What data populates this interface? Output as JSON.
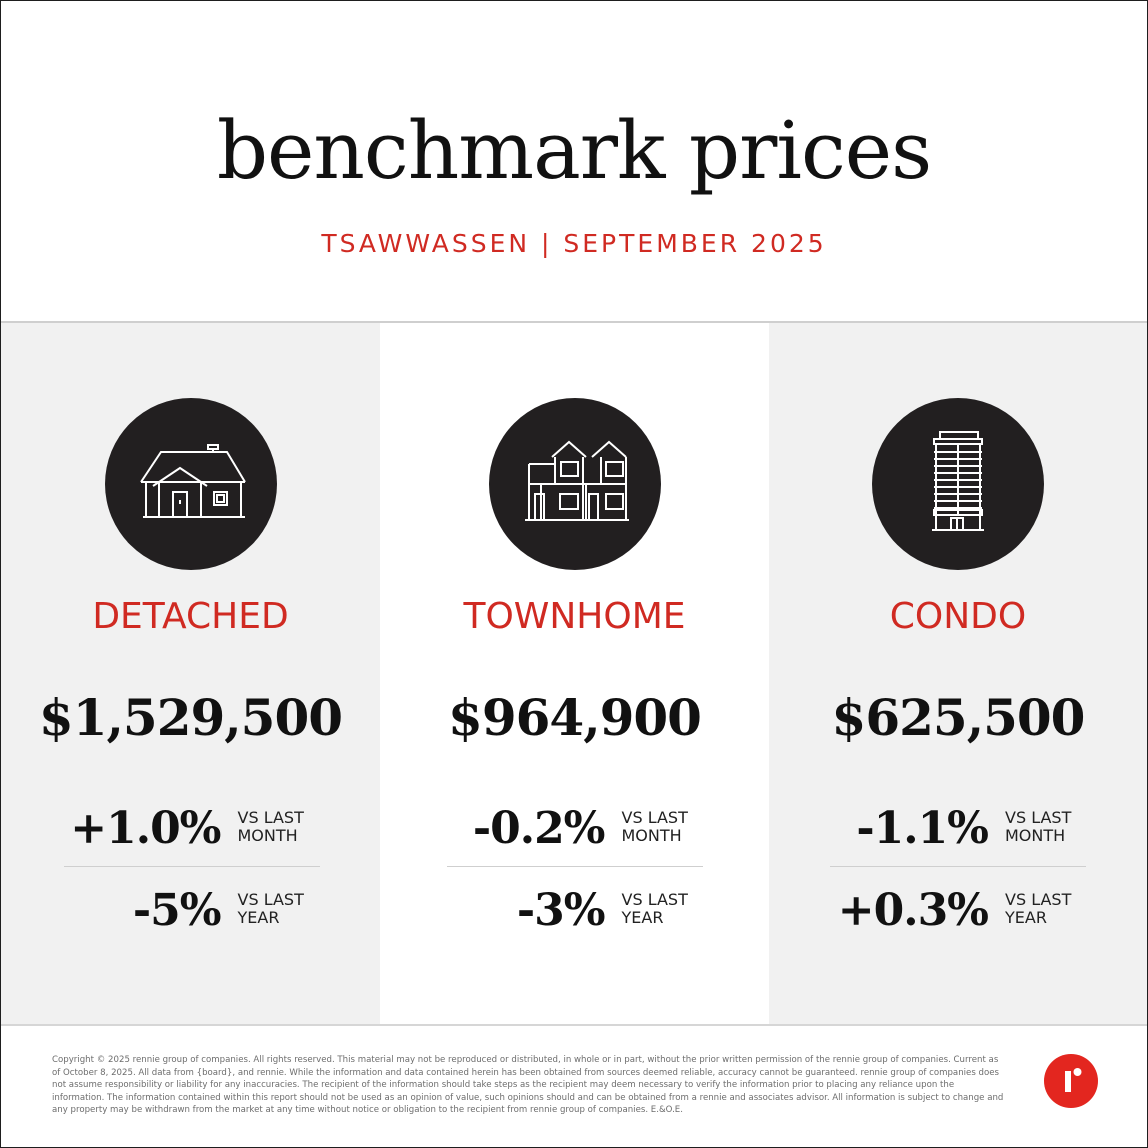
{
  "header": {
    "title": "benchmark prices",
    "subtitle": "TSAWWASSEN | SEPTEMBER 2025"
  },
  "colors": {
    "accent": "#d02a22",
    "icon_circle": "#221f20",
    "shaded_panel": "#f1f1f1",
    "logo": "#e3261f"
  },
  "panels": [
    {
      "icon": "detached-house-icon",
      "type": "DETACHED",
      "price": "$1,529,500",
      "month_change": "+1.0%",
      "month_label": "VS LAST MONTH",
      "year_change": "-5%",
      "year_label": "VS LAST YEAR"
    },
    {
      "icon": "townhome-icon",
      "type": "TOWNHOME",
      "price": "$964,900",
      "month_change": "-0.2%",
      "month_label": "VS LAST MONTH",
      "year_change": "-3%",
      "year_label": "VS LAST YEAR"
    },
    {
      "icon": "condo-building-icon",
      "type": "CONDO",
      "price": "$625,500",
      "month_change": "-1.1%",
      "month_label": "VS LAST MONTH",
      "year_change": "+0.3%",
      "year_label": "VS LAST YEAR"
    }
  ],
  "footer": {
    "disclaimer": "Copyright © 2025 rennie group of companies. All rights reserved. This material may not be reproduced or distributed, in whole or in part, without the prior written permission of the rennie group of companies. Current as of October 8, 2025. All data from {board}, and rennie. While the information and data contained herein has been obtained from sources deemed reliable, accuracy cannot be guaranteed. rennie group of companies does not assume responsibility or liability for any inaccuracies. The recipient of the information should take steps as the recipient may deem necessary to verify the information prior to placing any reliance upon the information. The information contained within this report should not be used as an opinion of value, such opinions should and can be obtained from a rennie and associates advisor. All information is subject to change and any property may be withdrawn from the market at any time without notice or obligation to the recipient from rennie group of companies. E.&O.E.",
    "logo": "rennie-logo-icon"
  }
}
